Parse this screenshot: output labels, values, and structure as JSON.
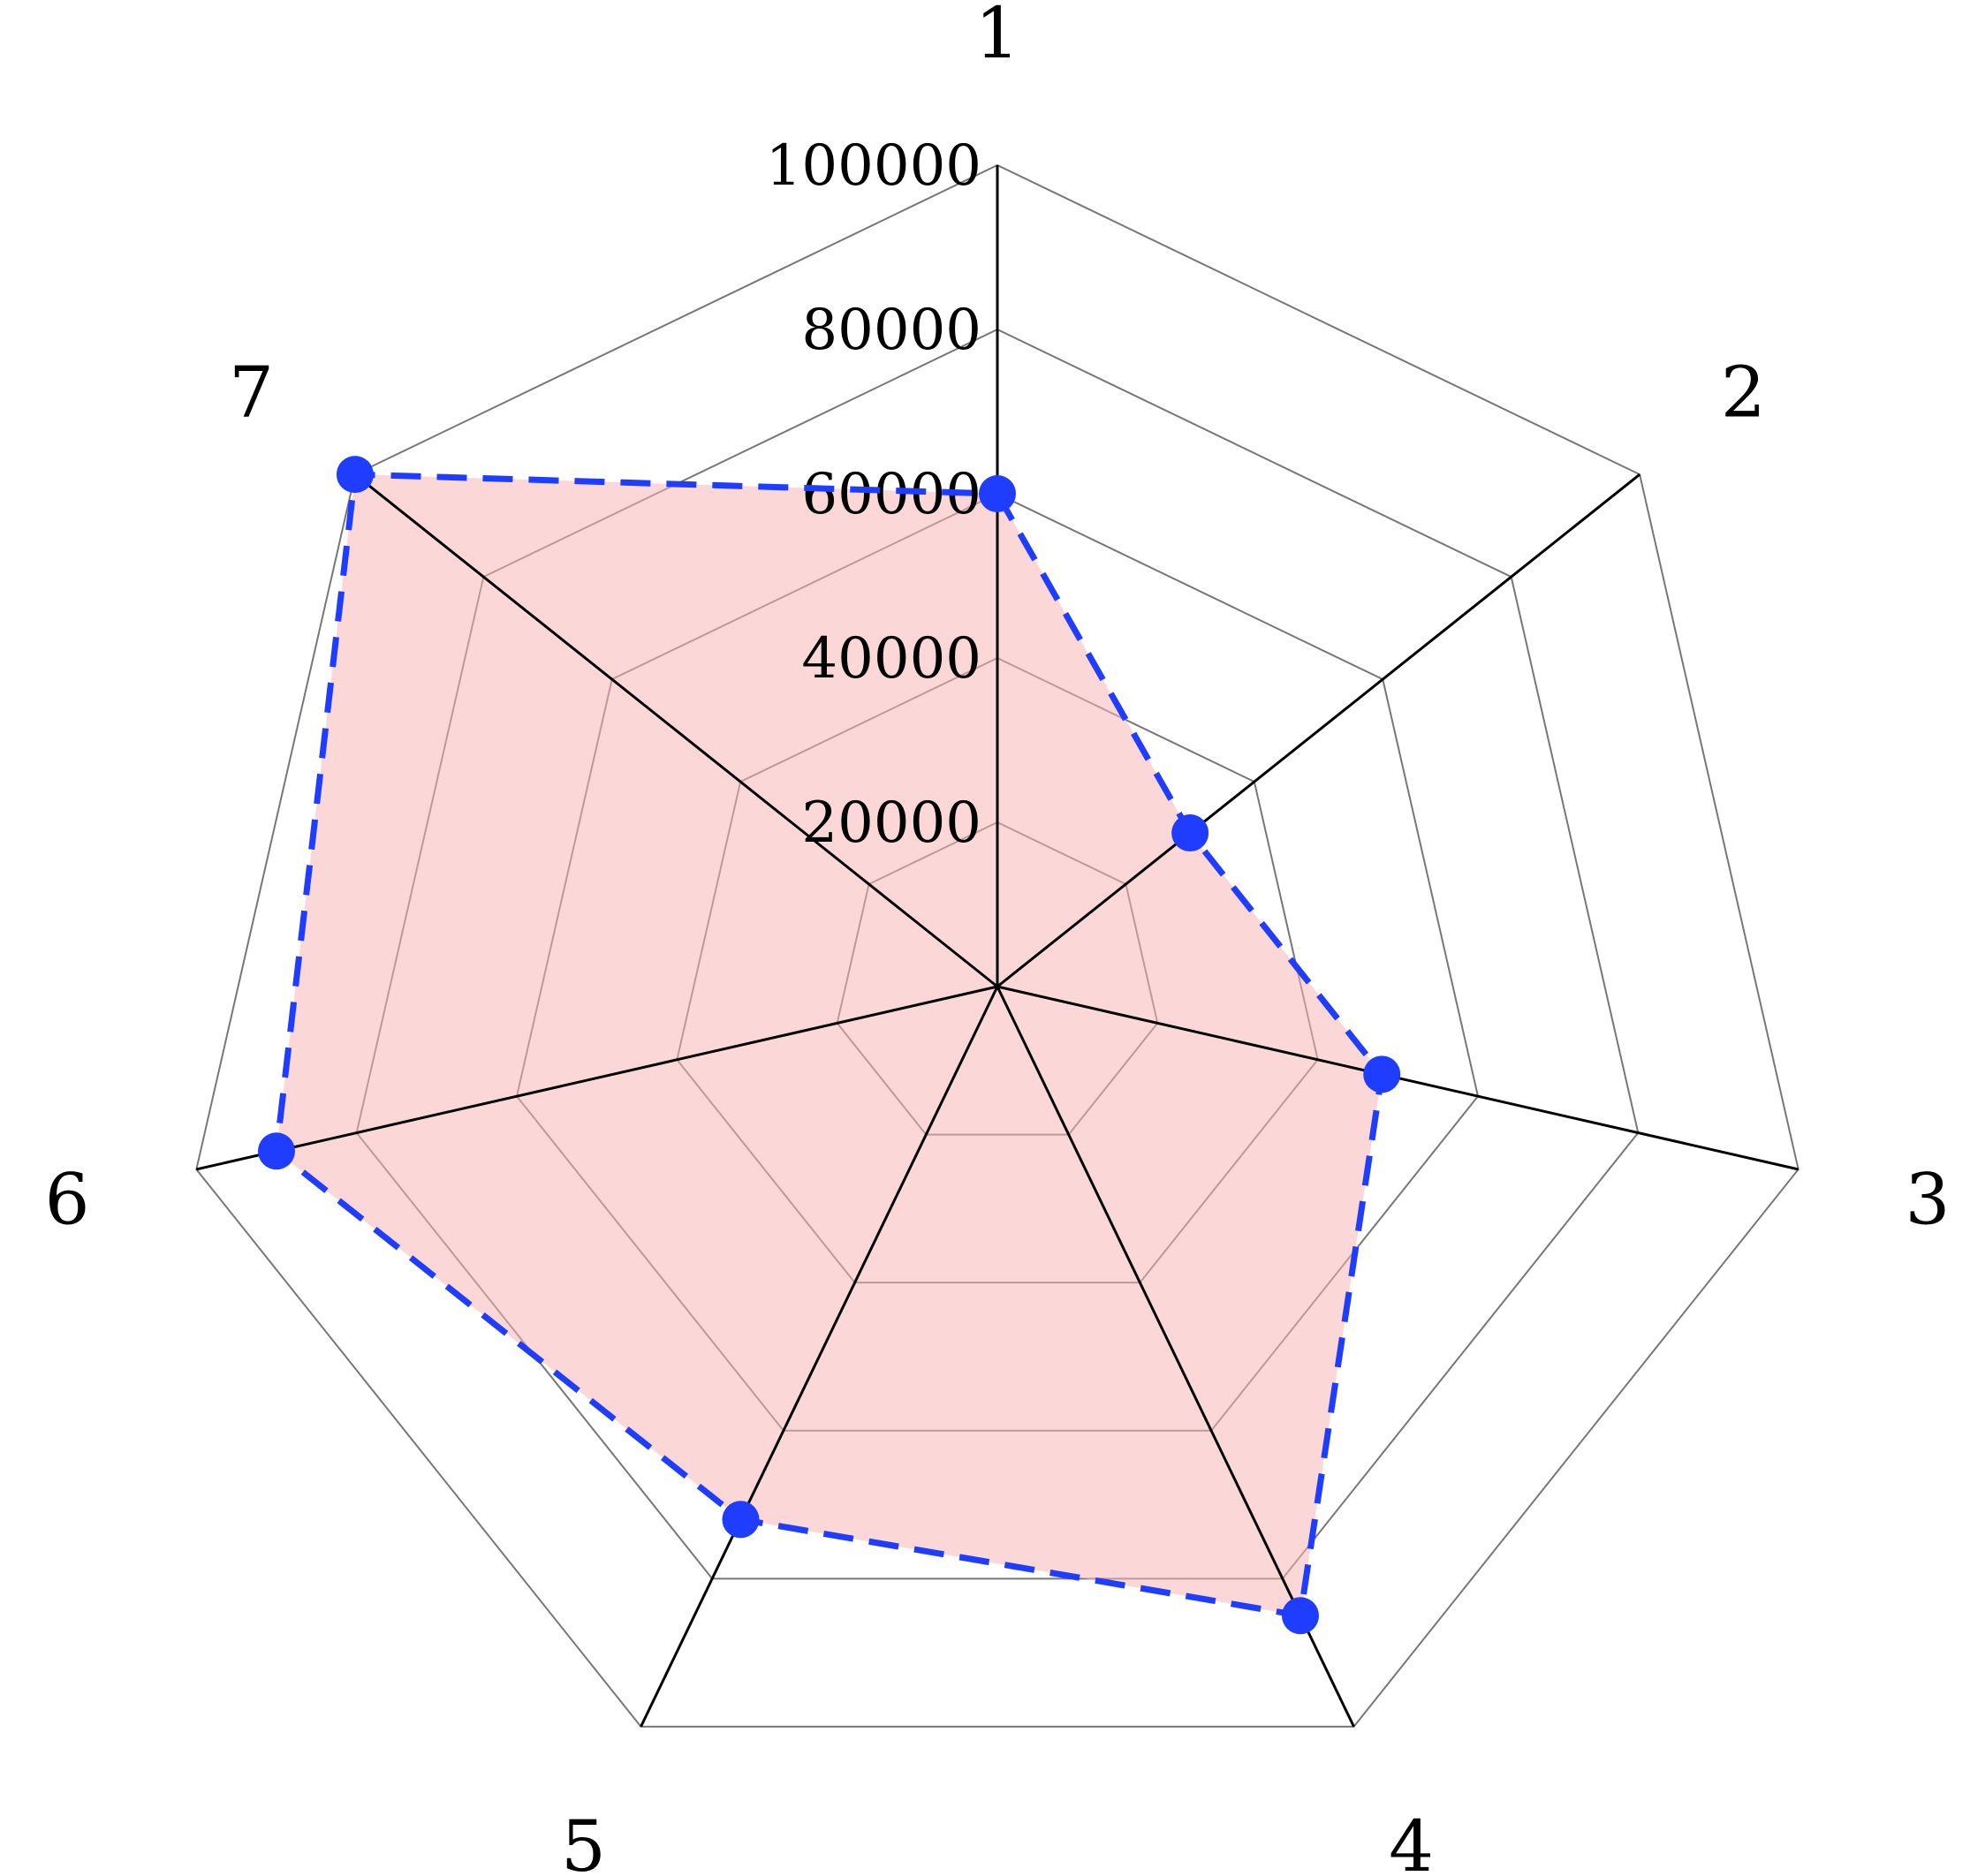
{
  "chart_data": {
    "type": "radar",
    "categories": [
      "1",
      "2",
      "3",
      "4",
      "5",
      "6",
      "7"
    ],
    "series": [
      {
        "values": [
          60000,
          30000,
          48000,
          85000,
          72000,
          90000,
          100000
        ]
      }
    ],
    "rlim": [
      0,
      100000
    ],
    "ticks": [
      "20000",
      "40000",
      "60000",
      "80000",
      "100000"
    ],
    "tick_values": [
      20000,
      40000,
      60000,
      80000,
      100000
    ],
    "grid": true,
    "colors": {
      "fill": "#f7b6b8",
      "line": "#1f3dff",
      "marker": "#1f3dff",
      "axis": "#000000",
      "grid": "#777777"
    }
  }
}
